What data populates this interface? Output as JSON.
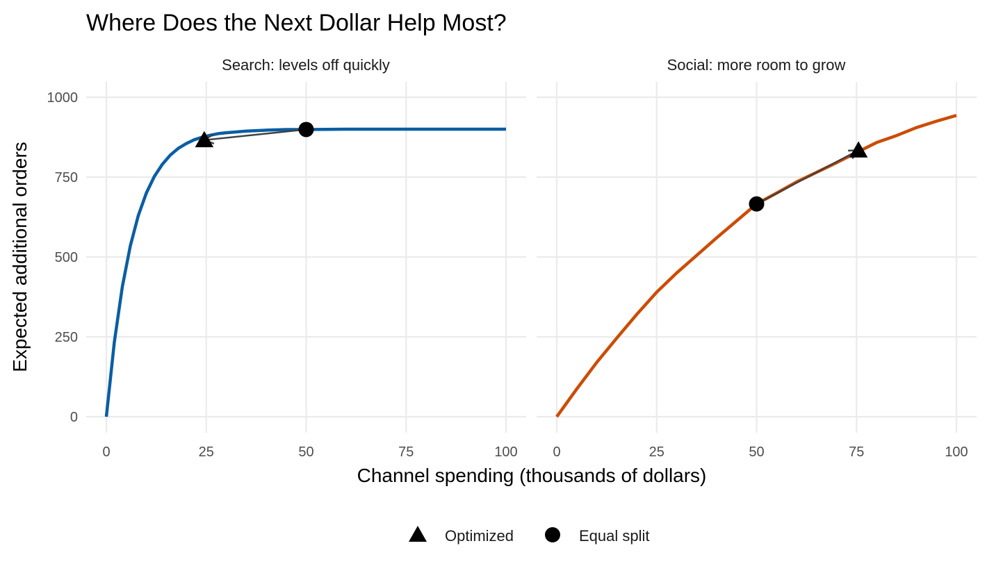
{
  "chart_data": {
    "type": "line",
    "title": "Where Does the Next Dollar Help Most?",
    "xlabel": "Channel spending (thousands of dollars)",
    "ylabel": "Expected additional orders",
    "xlim": [
      0,
      100
    ],
    "ylim": [
      0,
      1000
    ],
    "x_ticks": [
      0,
      25,
      50,
      75,
      100
    ],
    "y_ticks": [
      0,
      250,
      500,
      750,
      1000
    ],
    "x_tick_labels": [
      "0",
      "25",
      "50",
      "75",
      "100"
    ],
    "y_tick_labels": [
      "0",
      "250",
      "500",
      "750",
      "1000"
    ],
    "grid": true,
    "legend": {
      "placement": "bottom",
      "entries": [
        {
          "label": "Optimized",
          "shape": "triangle"
        },
        {
          "label": "Equal split",
          "shape": "circle"
        }
      ]
    },
    "panels": [
      {
        "title": "Search: levels off quickly",
        "color": "#0a5ea3",
        "curve": {
          "x": [
            0,
            2,
            4,
            6,
            8,
            10,
            12,
            14,
            16,
            18,
            20,
            22,
            24,
            26,
            28,
            30,
            35,
            40,
            45,
            50,
            60,
            70,
            80,
            90,
            100
          ],
          "y": [
            0,
            234,
            407,
            535,
            630,
            700,
            752,
            790,
            819,
            840,
            855,
            867,
            875,
            881,
            886,
            889,
            894,
            897,
            899,
            899,
            900,
            900,
            900,
            900,
            900
          ]
        },
        "equal_split": {
          "x": 50,
          "y": 899
        },
        "optimized": {
          "x": 24.5,
          "y": 866
        }
      },
      {
        "title": "Social: more room to grow",
        "color": "#cc4c02",
        "curve": {
          "x": [
            0,
            5,
            10,
            15,
            20,
            25,
            30,
            35,
            40,
            45,
            50,
            55,
            60,
            65,
            70,
            75,
            80,
            85,
            90,
            95,
            100
          ],
          "y": [
            0,
            87,
            170,
            246,
            320,
            390,
            450,
            505,
            560,
            613,
            666,
            700,
            735,
            765,
            795,
            827,
            858,
            880,
            905,
            925,
            943
          ]
        },
        "equal_split": {
          "x": 50,
          "y": 666
        },
        "optimized": {
          "x": 75.5,
          "y": 834
        }
      }
    ]
  }
}
